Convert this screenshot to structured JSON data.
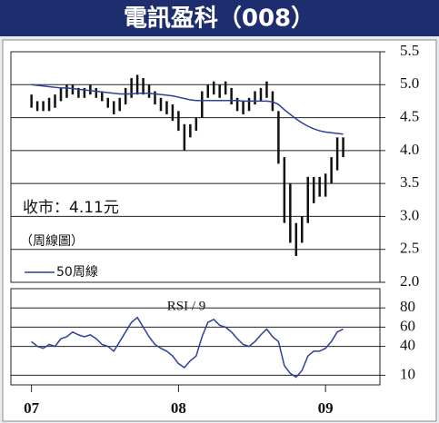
{
  "chart_data": [
    {
      "type": "stock",
      "title": "電訊盈科（008）",
      "annotations": [
        "收市：4.11元",
        "（周線圖）"
      ],
      "xlim": [
        2006.86,
        2009.37
      ],
      "xticks": [
        {
          "value": 2007,
          "label": "07"
        },
        {
          "value": 2008,
          "label": "08"
        },
        {
          "value": 2009,
          "label": "09"
        }
      ],
      "ylim": [
        2.0,
        5.5
      ],
      "yticks": [
        {
          "value": 2,
          "label": "2.0"
        },
        2.5,
        {
          "value": 3,
          "label": "3.0"
        },
        3.5,
        {
          "value": 4,
          "label": "4.0"
        },
        4.5,
        {
          "value": 5,
          "label": "5.0"
        },
        5.5
      ],
      "grid": true,
      "x": [
        2007.0,
        2007.04,
        2007.08,
        2007.12,
        2007.16,
        2007.2,
        2007.24,
        2007.28,
        2007.32,
        2007.36,
        2007.4,
        2007.44,
        2007.48,
        2007.52,
        2007.56,
        2007.6,
        2007.64,
        2007.68,
        2007.72,
        2007.76,
        2007.8,
        2007.84,
        2007.88,
        2007.92,
        2007.96,
        2008.0,
        2008.04,
        2008.08,
        2008.12,
        2008.16,
        2008.2,
        2008.24,
        2008.28,
        2008.32,
        2008.36,
        2008.4,
        2008.44,
        2008.48,
        2008.52,
        2008.56,
        2008.6,
        2008.64,
        2008.68,
        2008.72,
        2008.76,
        2008.8,
        2008.84,
        2008.88,
        2008.92,
        2008.96,
        2009.0,
        2009.04,
        2009.08,
        2009.12
      ],
      "high": [
        4.85,
        4.75,
        4.75,
        4.8,
        4.85,
        4.95,
        5.0,
        5.0,
        4.95,
        4.95,
        5.0,
        4.95,
        4.9,
        4.8,
        4.75,
        4.8,
        4.95,
        5.1,
        5.15,
        5.1,
        5.0,
        4.9,
        4.8,
        4.75,
        4.7,
        4.6,
        4.4,
        4.4,
        4.5,
        4.9,
        5.0,
        5.05,
        5.0,
        5.05,
        4.95,
        4.8,
        4.75,
        4.8,
        4.9,
        4.95,
        5.05,
        4.9,
        4.6,
        3.9,
        3.5,
        2.9,
        3.0,
        3.6,
        3.6,
        3.6,
        3.65,
        3.9,
        4.2,
        4.2
      ],
      "low": [
        4.65,
        4.6,
        4.6,
        4.6,
        4.65,
        4.75,
        4.8,
        4.85,
        4.8,
        4.8,
        4.85,
        4.8,
        4.75,
        4.65,
        4.55,
        4.6,
        4.7,
        4.8,
        4.85,
        4.85,
        4.8,
        4.7,
        4.6,
        4.55,
        4.45,
        4.3,
        4.0,
        4.2,
        4.3,
        4.5,
        4.8,
        4.85,
        4.8,
        4.85,
        4.7,
        4.6,
        4.55,
        4.6,
        4.7,
        4.75,
        4.8,
        4.6,
        3.8,
        2.9,
        2.6,
        2.4,
        2.6,
        2.9,
        3.2,
        3.3,
        3.3,
        3.5,
        3.7,
        3.9
      ],
      "bar_color": "#111111",
      "legend": "lower left",
      "series": [
        {
          "name": "50周線",
          "color": "#2f3f9a",
          "values": [
            5.0,
            4.99,
            4.98,
            4.97,
            4.96,
            4.95,
            4.95,
            4.94,
            4.93,
            4.92,
            4.91,
            4.9,
            4.89,
            4.88,
            4.87,
            4.86,
            4.86,
            4.86,
            4.87,
            4.87,
            4.87,
            4.86,
            4.85,
            4.84,
            4.83,
            4.81,
            4.79,
            4.77,
            4.76,
            4.76,
            4.76,
            4.76,
            4.76,
            4.76,
            4.76,
            4.76,
            4.75,
            4.75,
            4.75,
            4.75,
            4.75,
            4.74,
            4.7,
            4.62,
            4.55,
            4.48,
            4.42,
            4.37,
            4.33,
            4.3,
            4.28,
            4.27,
            4.26,
            4.25
          ]
        }
      ]
    },
    {
      "type": "line",
      "title": "RSI / 9",
      "ylim": [
        0,
        100
      ],
      "yticks": [
        10,
        40,
        60,
        80
      ],
      "grid": true,
      "series": [
        {
          "color": "#2f3f9a",
          "values": [
            45,
            40,
            38,
            42,
            40,
            48,
            50,
            55,
            52,
            50,
            52,
            48,
            42,
            40,
            35,
            45,
            55,
            65,
            70,
            60,
            50,
            42,
            38,
            35,
            30,
            22,
            18,
            25,
            30,
            50,
            65,
            68,
            62,
            60,
            55,
            48,
            42,
            40,
            45,
            52,
            58,
            50,
            45,
            20,
            12,
            8,
            15,
            30,
            35,
            35,
            38,
            45,
            55,
            58
          ]
        }
      ]
    }
  ]
}
